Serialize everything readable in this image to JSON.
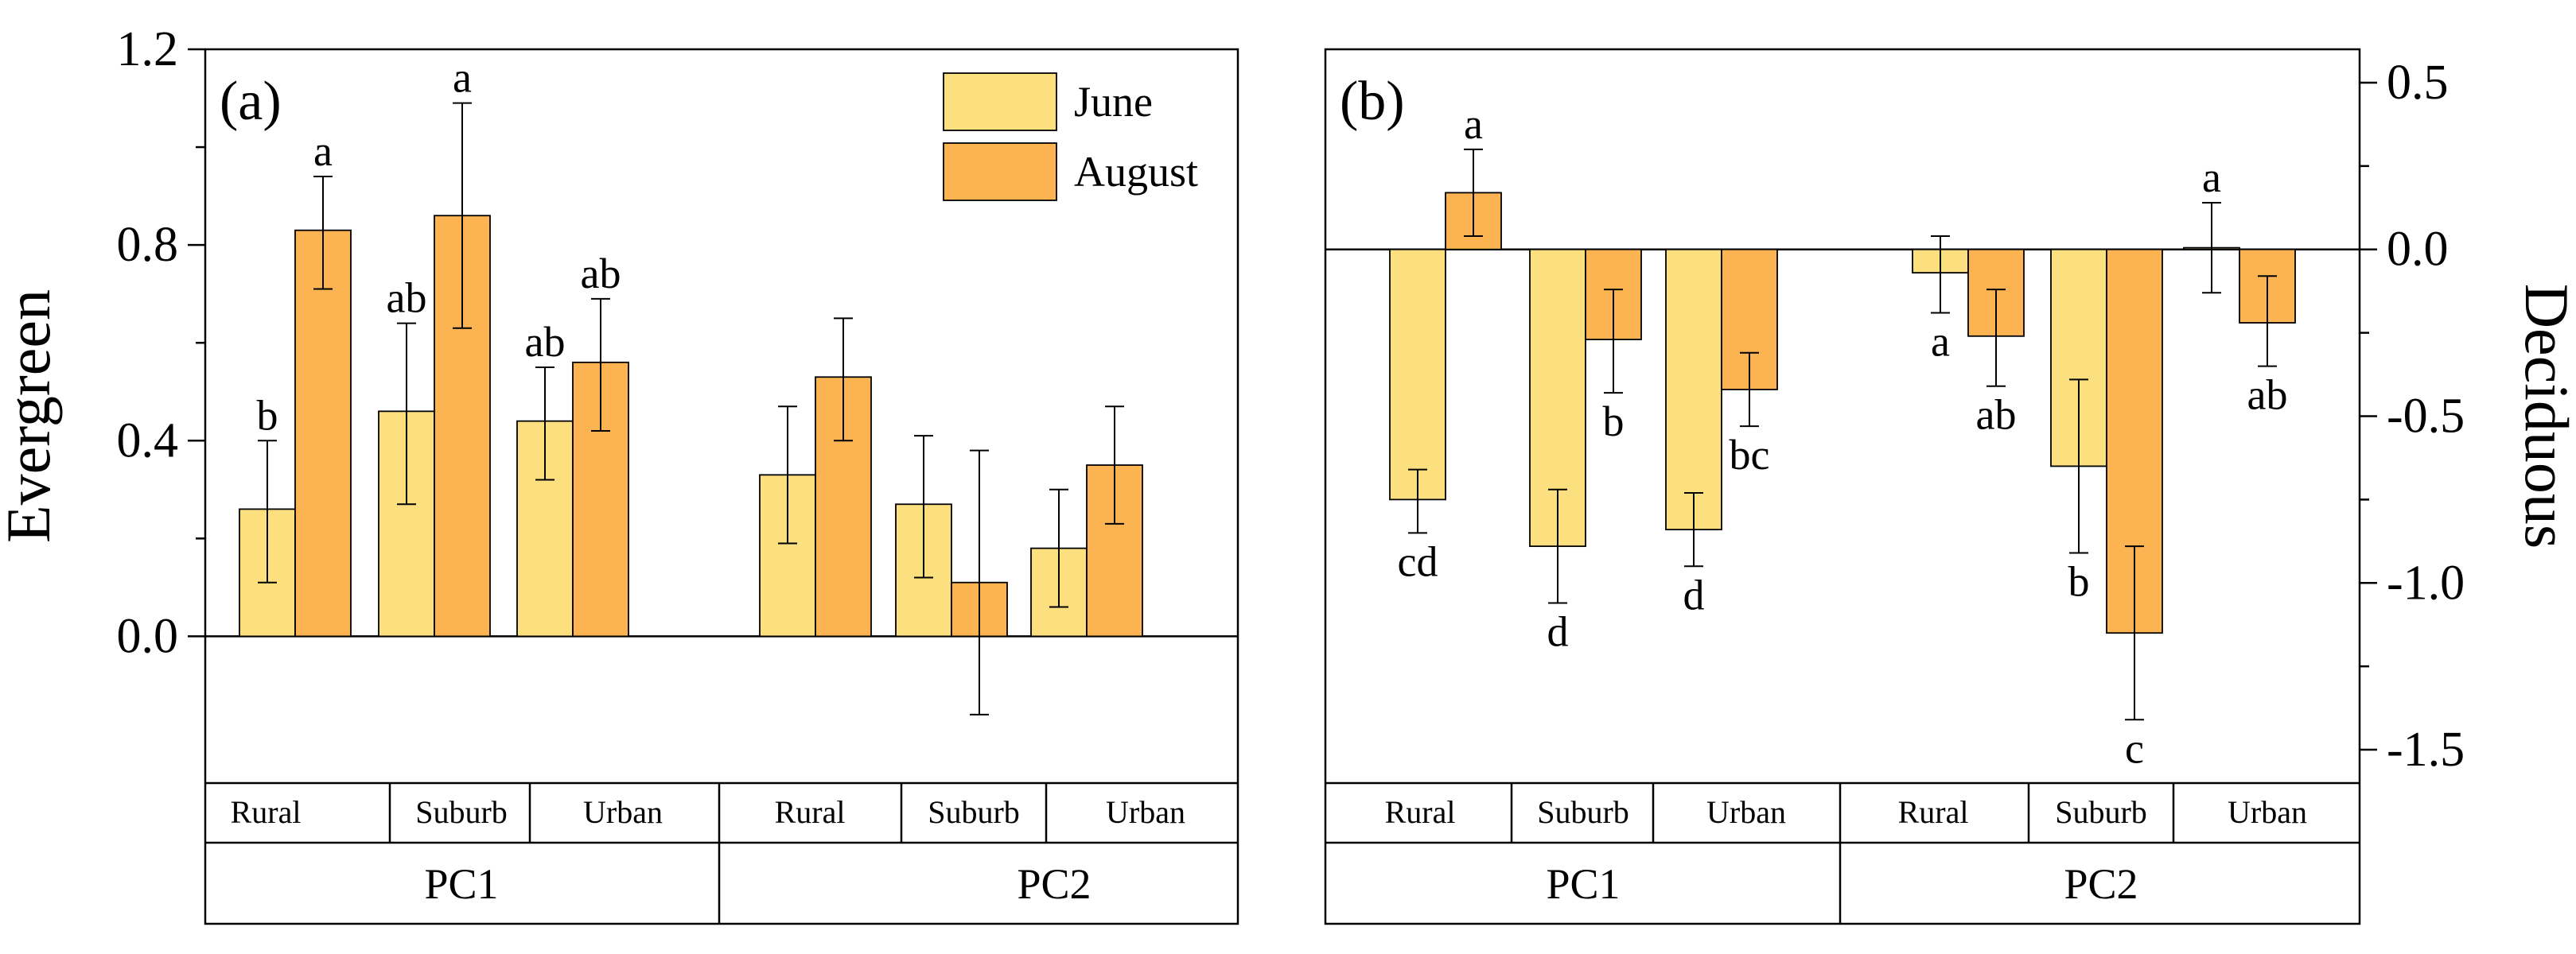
{
  "chart_data": [
    {
      "type": "bar",
      "panel_label": "(a)",
      "ylabel": "Evergreen",
      "yaxis_side": "left",
      "ylim": [
        -0.3,
        1.2
      ],
      "yticks": [
        0.0,
        0.4,
        0.8,
        1.2
      ],
      "ytick_labels": [
        "0.0",
        "0.4",
        "0.8",
        "1.2"
      ],
      "groups": [
        "PC1",
        "PC2"
      ],
      "categories": [
        "Rural",
        "Suburb",
        "Urban",
        "Rural",
        "Suburb",
        "Urban"
      ],
      "series": [
        {
          "name": "June",
          "color": "#FCE07F",
          "values": [
            0.26,
            0.46,
            0.44,
            0.33,
            0.27,
            0.18
          ],
          "err_low": [
            0.11,
            0.27,
            0.32,
            0.19,
            0.12,
            0.06
          ],
          "err_high": [
            0.4,
            0.64,
            0.55,
            0.47,
            0.41,
            0.3
          ],
          "letters": [
            "b",
            "ab",
            "ab",
            "",
            "",
            ""
          ],
          "letter_pos": "above"
        },
        {
          "name": "August",
          "color": "#FBB451",
          "values": [
            0.83,
            0.86,
            0.56,
            0.53,
            0.11,
            0.35
          ],
          "err_low": [
            0.71,
            0.63,
            0.42,
            0.4,
            -0.16,
            0.23
          ],
          "err_high": [
            0.94,
            1.09,
            0.69,
            0.65,
            0.38,
            0.47
          ],
          "letters": [
            "a",
            "a",
            "ab",
            "",
            "",
            ""
          ],
          "letter_pos": "above"
        }
      ],
      "legend": [
        "June",
        "August"
      ],
      "legend_position": "top-right"
    },
    {
      "type": "bar",
      "panel_label": "(b)",
      "ylabel": "Deciduous",
      "yaxis_side": "right",
      "ylim": [
        -1.6,
        0.6
      ],
      "yticks": [
        0.5,
        0.0,
        -0.5,
        -1.0,
        -1.5
      ],
      "ytick_labels": [
        "0.5",
        "0.0",
        "-0.5",
        "-1.0",
        "-1.5"
      ],
      "groups": [
        "PC1",
        "PC2"
      ],
      "categories": [
        "Rural",
        "Suburb",
        "Urban",
        "Rural",
        "Suburb",
        "Urban"
      ],
      "series": [
        {
          "name": "June",
          "color": "#FCE07F",
          "values": [
            -0.75,
            -0.89,
            -0.84,
            -0.07,
            -0.65,
            0.005
          ],
          "err_low": [
            -0.85,
            -1.06,
            -0.95,
            -0.19,
            -0.91,
            -0.13
          ],
          "err_high": [
            -0.66,
            -0.72,
            -0.73,
            0.04,
            -0.39,
            0.14
          ],
          "letters": [
            "cd",
            "d",
            "d",
            "a",
            "b",
            "a"
          ],
          "letter_pos": [
            "below",
            "below",
            "below",
            "below",
            "below",
            "above"
          ]
        },
        {
          "name": "August",
          "color": "#FBB451",
          "values": [
            0.17,
            -0.27,
            -0.42,
            -0.26,
            -1.15,
            -0.22
          ],
          "err_low": [
            0.04,
            -0.43,
            -0.53,
            -0.41,
            -1.41,
            -0.35
          ],
          "err_high": [
            0.3,
            -0.12,
            -0.31,
            -0.12,
            -0.89,
            -0.08
          ],
          "letters": [
            "a",
            "b",
            "bc",
            "ab",
            "c",
            "ab"
          ],
          "letter_pos": [
            "above",
            "below",
            "below",
            "below",
            "below",
            "below"
          ]
        }
      ]
    }
  ]
}
